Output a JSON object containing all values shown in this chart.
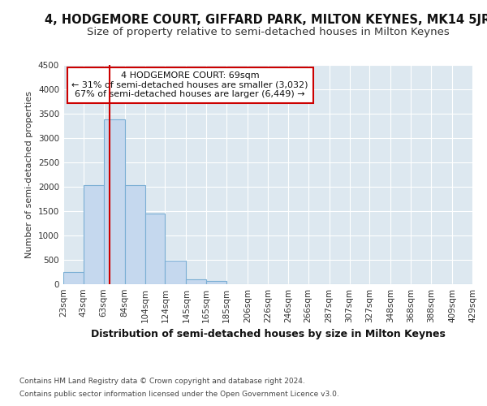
{
  "title_line1": "4, HODGEMORE COURT, GIFFARD PARK, MILTON KEYNES, MK14 5JR",
  "title_line2": "Size of property relative to semi-detached houses in Milton Keynes",
  "xlabel": "Distribution of semi-detached houses by size in Milton Keynes",
  "ylabel": "Number of semi-detached properties",
  "footnote1": "Contains HM Land Registry data © Crown copyright and database right 2024.",
  "footnote2": "Contains public sector information licensed under the Open Government Licence v3.0.",
  "annotation_title": "4 HODGEMORE COURT: 69sqm",
  "annotation_line1": "← 31% of semi-detached houses are smaller (3,032)",
  "annotation_line2": "67% of semi-detached houses are larger (6,449) →",
  "property_size": 69,
  "bar_edges": [
    23,
    43,
    63,
    84,
    104,
    124,
    145,
    165,
    185,
    206,
    226,
    246,
    266,
    287,
    307,
    327,
    348,
    368,
    388,
    409,
    429
  ],
  "bar_heights": [
    250,
    2030,
    3380,
    2030,
    1450,
    480,
    100,
    60,
    0,
    0,
    0,
    0,
    0,
    0,
    0,
    0,
    0,
    0,
    0,
    0
  ],
  "bar_color": "#c5d8ee",
  "bar_edge_color": "#7aaed4",
  "vline_color": "#cc0000",
  "vline_x": 69,
  "ylim": [
    0,
    4500
  ],
  "yticks": [
    0,
    500,
    1000,
    1500,
    2000,
    2500,
    3000,
    3500,
    4000,
    4500
  ],
  "bg_color": "#dde8f0",
  "grid_color": "#ffffff",
  "annotation_box_facecolor": "#ffffff",
  "annotation_box_edgecolor": "#cc0000",
  "title1_fontsize": 10.5,
  "title2_fontsize": 9.5,
  "xlabel_fontsize": 9,
  "ylabel_fontsize": 8,
  "tick_fontsize": 7.5,
  "annotation_fontsize": 8,
  "footnote_fontsize": 6.5
}
